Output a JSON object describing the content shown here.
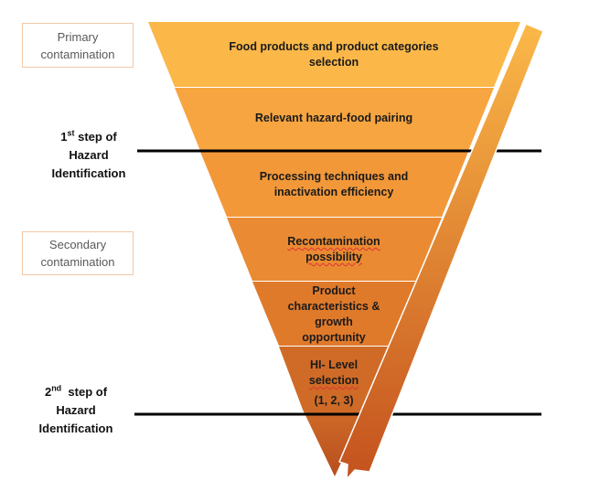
{
  "side_boxes": {
    "primary": {
      "line1": "Primary",
      "line2": "contamination"
    },
    "secondary": {
      "line1": "Secondary",
      "line2": "contamination"
    }
  },
  "steps": {
    "first": {
      "num": "1",
      "sup": "st",
      "line1": " step of",
      "line2": "Hazard",
      "line3": "Identification"
    },
    "second": {
      "num": "2",
      "sup": "nd",
      "line1": "  step of",
      "line2": "Hazard",
      "line3": "Identification"
    }
  },
  "layers": [
    {
      "line1": "Food products and product categories",
      "line2": "selection",
      "color": "#fbb848"
    },
    {
      "line1": "Relevant hazard-food pairing",
      "color": "#f7a540"
    },
    {
      "line1": "Processing techniques and",
      "line2": "inactivation efficiency",
      "color": "#f39839"
    },
    {
      "line1": "Recontamination",
      "line2": "possibility",
      "color": "#ea8a32"
    },
    {
      "line1": "Product",
      "line2": "characteristics &",
      "line3": "growth",
      "line4": "opportunity",
      "color": "#e07a2b"
    },
    {
      "line1": "HI- Level",
      "line2": "selection",
      "line3": "(1, 2, 3)",
      "color": "#cf6b27"
    }
  ],
  "colors": {
    "arrow_top": "#fbb848",
    "arrow_bottom": "#c4521e",
    "tip": "#c4521e",
    "divider": "#000000"
  }
}
